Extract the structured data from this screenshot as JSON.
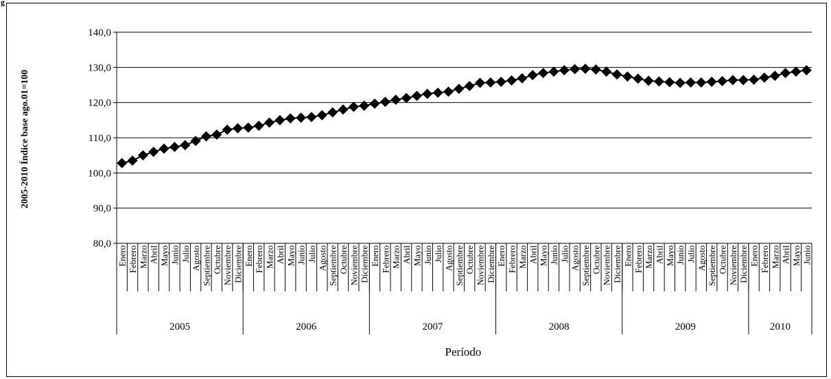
{
  "page": {
    "corner_label": "g"
  },
  "chart_data": {
    "type": "line",
    "ylabel": "2005-2010 Índice base ago.01=100",
    "xlabel": "Período",
    "ylim": [
      80,
      140
    ],
    "yticks": [
      "80,0",
      "90,0",
      "100,0",
      "110,0",
      "120,0",
      "130,0",
      "140,0"
    ],
    "grid": "horizontal",
    "marker": "diamond",
    "colors": {
      "series": "#000000",
      "grid": "#000000",
      "frame": "#000000"
    },
    "years": [
      {
        "label": "2005",
        "months": 12
      },
      {
        "label": "2006",
        "months": 12
      },
      {
        "label": "2007",
        "months": 12
      },
      {
        "label": "2008",
        "months": 12
      },
      {
        "label": "2009",
        "months": 12
      },
      {
        "label": "2010",
        "months": 6
      }
    ],
    "categories": [
      "Enero",
      "Febrero",
      "Marzo",
      "Abril",
      "Mayo",
      "Junio",
      "Julio",
      "Agosto",
      "Septiembre",
      "Octubre",
      "Noviembre",
      "Diciembre",
      "Enero",
      "Febrero",
      "Marzo",
      "Abril",
      "Mayo",
      "Junio",
      "Julio",
      "Agosto",
      "Septiembre",
      "Octubre",
      "Noviembre",
      "Diciembre",
      "Enero",
      "Febrero",
      "Marzo",
      "Abril",
      "Mayo",
      "Junio",
      "Julio",
      "Agosto",
      "Septiembre",
      "Octubre",
      "Noviembre",
      "Diciembre",
      "Enero",
      "Febrero",
      "Marzo",
      "Abril",
      "Mayo",
      "Junio",
      "Julio",
      "Agosto",
      "Septiembre",
      "Octubre",
      "Noviembre",
      "Diciembre",
      "Enero",
      "Febrero",
      "Marzo",
      "Abril",
      "Mayo",
      "Junio",
      "Julio",
      "Agosto",
      "Septiembre",
      "Octubre",
      "Noviembre",
      "Diciembre",
      "Enero",
      "Febrero",
      "Marzo",
      "Abril",
      "Mayo",
      "Junio"
    ],
    "values": [
      102.8,
      103.5,
      105.0,
      106.0,
      106.9,
      107.4,
      107.9,
      109.1,
      110.4,
      110.9,
      112.3,
      112.7,
      112.9,
      113.4,
      114.3,
      115.0,
      115.5,
      115.7,
      115.9,
      116.4,
      117.2,
      118.0,
      118.8,
      119.1,
      119.7,
      120.2,
      120.8,
      121.3,
      121.9,
      122.5,
      122.8,
      123.1,
      123.9,
      124.7,
      125.6,
      125.7,
      125.9,
      126.3,
      126.9,
      127.8,
      128.4,
      128.8,
      129.2,
      129.5,
      129.6,
      129.4,
      128.8,
      128.0,
      127.4,
      126.8,
      126.2,
      126.0,
      125.8,
      125.6,
      125.7,
      125.7,
      125.9,
      126.1,
      126.4,
      126.4,
      126.5,
      127.1,
      127.6,
      128.4,
      128.8,
      129.2
    ]
  }
}
